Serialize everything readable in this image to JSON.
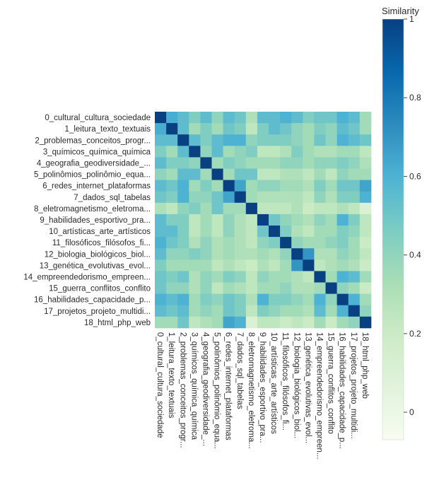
{
  "chart_data": {
    "type": "heatmap",
    "title": "",
    "xlabel": "",
    "ylabel": "",
    "categories": [
      "0_cultural_cultura_sociedade",
      "1_leitura_texto_textuais",
      "2_problemas_conceitos_progr...",
      "3_químicos_química_química",
      "4_geografia_geodiversidade_...",
      "5_polinômios_polinômio_equa...",
      "6_redes_internet_plataformas",
      "7_dados_sql_tabelas",
      "8_eletromagnetismo_eletroma...",
      "9_habilidades_esportivo_pra...",
      "10_artísticas_arte_artísticos",
      "11_filosóficos_filósofos_fi...",
      "12_biologia_biológicos_biol...",
      "13_genética_evolutivas_evol...",
      "14_empreendedorismo_empreen...",
      "15_guerra_conflitos_conflito",
      "16_habilidades_capacidade_p...",
      "17_projetos_projeto_multidi...",
      "18_html_php_web"
    ],
    "values": [
      [
        1.0,
        0.62,
        0.55,
        0.45,
        0.55,
        0.4,
        0.55,
        0.5,
        0.3,
        0.55,
        0.55,
        0.6,
        0.55,
        0.45,
        0.5,
        0.5,
        0.6,
        0.55,
        0.35
      ],
      [
        0.62,
        1.0,
        0.55,
        0.35,
        0.45,
        0.35,
        0.5,
        0.45,
        0.25,
        0.45,
        0.55,
        0.5,
        0.4,
        0.35,
        0.45,
        0.4,
        0.55,
        0.5,
        0.35
      ],
      [
        0.55,
        0.55,
        1.0,
        0.55,
        0.45,
        0.55,
        0.6,
        0.6,
        0.4,
        0.45,
        0.45,
        0.45,
        0.4,
        0.35,
        0.5,
        0.4,
        0.6,
        0.55,
        0.5
      ],
      [
        0.45,
        0.35,
        0.55,
        1.0,
        0.4,
        0.55,
        0.35,
        0.4,
        0.45,
        0.25,
        0.25,
        0.3,
        0.45,
        0.35,
        0.3,
        0.3,
        0.35,
        0.35,
        0.25
      ],
      [
        0.55,
        0.45,
        0.45,
        0.4,
        1.0,
        0.35,
        0.45,
        0.4,
        0.35,
        0.35,
        0.35,
        0.4,
        0.4,
        0.35,
        0.4,
        0.4,
        0.45,
        0.4,
        0.3
      ],
      [
        0.4,
        0.35,
        0.55,
        0.55,
        0.35,
        1.0,
        0.35,
        0.5,
        0.5,
        0.25,
        0.25,
        0.3,
        0.3,
        0.25,
        0.35,
        0.25,
        0.4,
        0.35,
        0.35
      ],
      [
        0.55,
        0.5,
        0.6,
        0.35,
        0.45,
        0.35,
        1.0,
        0.65,
        0.35,
        0.4,
        0.4,
        0.35,
        0.35,
        0.3,
        0.45,
        0.35,
        0.5,
        0.5,
        0.65
      ],
      [
        0.5,
        0.45,
        0.6,
        0.4,
        0.4,
        0.5,
        0.65,
        1.0,
        0.35,
        0.3,
        0.3,
        0.3,
        0.3,
        0.25,
        0.4,
        0.3,
        0.45,
        0.45,
        0.6
      ],
      [
        0.3,
        0.25,
        0.4,
        0.45,
        0.35,
        0.5,
        0.35,
        0.35,
        1.0,
        0.25,
        0.25,
        0.25,
        0.3,
        0.2,
        0.25,
        0.25,
        0.3,
        0.25,
        0.1
      ],
      [
        0.55,
        0.45,
        0.45,
        0.25,
        0.35,
        0.25,
        0.4,
        0.3,
        0.25,
        1.0,
        0.5,
        0.4,
        0.35,
        0.3,
        0.4,
        0.35,
        0.6,
        0.45,
        0.25
      ],
      [
        0.55,
        0.55,
        0.45,
        0.25,
        0.35,
        0.25,
        0.4,
        0.3,
        0.25,
        0.5,
        1.0,
        0.45,
        0.3,
        0.25,
        0.35,
        0.35,
        0.45,
        0.4,
        0.25
      ],
      [
        0.6,
        0.5,
        0.45,
        0.3,
        0.4,
        0.3,
        0.35,
        0.3,
        0.25,
        0.4,
        0.45,
        1.0,
        0.4,
        0.35,
        0.35,
        0.4,
        0.45,
        0.35,
        0.2
      ],
      [
        0.55,
        0.4,
        0.4,
        0.45,
        0.4,
        0.3,
        0.35,
        0.3,
        0.3,
        0.35,
        0.3,
        0.4,
        1.0,
        0.7,
        0.3,
        0.3,
        0.4,
        0.35,
        0.25
      ],
      [
        0.45,
        0.35,
        0.35,
        0.35,
        0.35,
        0.25,
        0.3,
        0.25,
        0.2,
        0.3,
        0.25,
        0.35,
        0.7,
        1.0,
        0.25,
        0.3,
        0.35,
        0.3,
        0.2
      ],
      [
        0.5,
        0.45,
        0.5,
        0.3,
        0.4,
        0.35,
        0.45,
        0.4,
        0.25,
        0.4,
        0.35,
        0.35,
        0.3,
        0.25,
        1.0,
        0.35,
        0.6,
        0.55,
        0.35
      ],
      [
        0.5,
        0.4,
        0.4,
        0.3,
        0.4,
        0.25,
        0.35,
        0.3,
        0.25,
        0.35,
        0.35,
        0.4,
        0.3,
        0.3,
        0.35,
        1.0,
        0.4,
        0.35,
        0.2
      ],
      [
        0.6,
        0.55,
        0.6,
        0.35,
        0.45,
        0.4,
        0.5,
        0.45,
        0.3,
        0.6,
        0.45,
        0.45,
        0.4,
        0.35,
        0.6,
        0.4,
        1.0,
        0.6,
        0.35
      ],
      [
        0.55,
        0.5,
        0.55,
        0.35,
        0.4,
        0.35,
        0.5,
        0.45,
        0.25,
        0.45,
        0.4,
        0.35,
        0.35,
        0.3,
        0.55,
        0.35,
        0.6,
        1.0,
        0.4
      ],
      [
        0.35,
        0.35,
        0.5,
        0.25,
        0.3,
        0.35,
        0.65,
        0.6,
        0.1,
        0.25,
        0.25,
        0.2,
        0.25,
        0.2,
        0.35,
        0.2,
        0.35,
        0.4,
        1.0
      ]
    ],
    "colorbar": {
      "title": "Similarity",
      "ticks": [
        "1",
        "0.8",
        "0.6",
        "0.4",
        "0.2",
        "0"
      ],
      "tick_values": [
        1,
        0.8,
        0.6,
        0.4,
        0.2,
        0
      ],
      "range": [
        -0.07,
        1
      ]
    },
    "colors": [
      "#f7fcf0",
      "#e0f3db",
      "#ccebc5",
      "#a8ddb5",
      "#7bccc4",
      "#4eb3d3",
      "#2b8cbe",
      "#0868ac",
      "#084081"
    ]
  }
}
